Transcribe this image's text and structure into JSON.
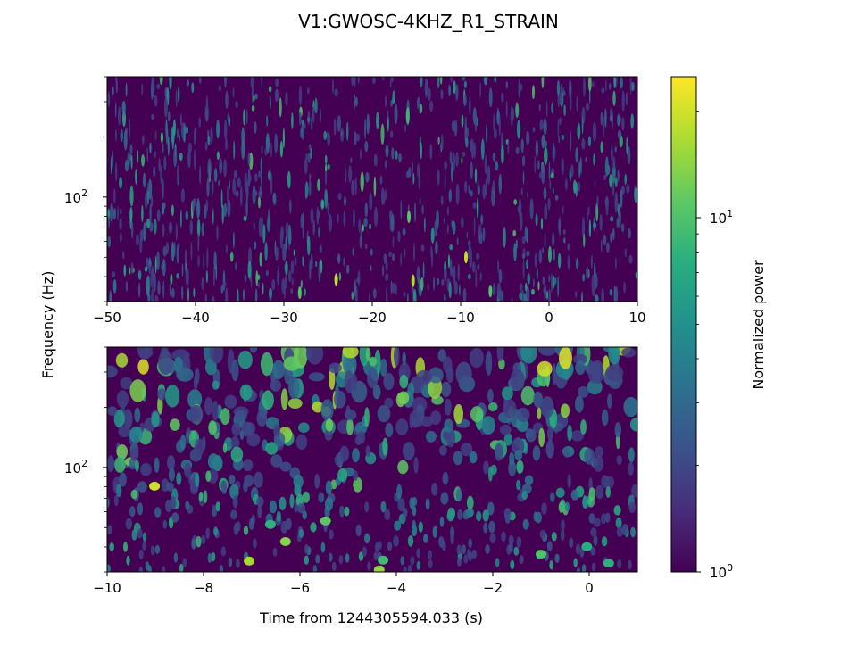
{
  "chart_data": {
    "type": "heatmap",
    "title": "V1:GWOSC-4KHZ_R1_STRAIN",
    "ylabel": "Frequency (Hz)",
    "xlabel": "Time from 1244305594.033 (s)",
    "colormap": "viridis",
    "colorbar": {
      "label": "Normalized power",
      "scale": "log",
      "range": [
        1,
        25
      ],
      "ticks": [
        {
          "value": 1,
          "base": "10",
          "exp": "0"
        },
        {
          "value": 10,
          "base": "10",
          "exp": "1"
        }
      ]
    },
    "panels": [
      {
        "name": "top",
        "xlim": [
          -50,
          10
        ],
        "ylim": [
          30,
          400
        ],
        "yscale": "log",
        "xticks": [
          {
            "value": -50,
            "label": "−50"
          },
          {
            "value": -40,
            "label": "−40"
          },
          {
            "value": -30,
            "label": "−30"
          },
          {
            "value": -20,
            "label": "−20"
          },
          {
            "value": -10,
            "label": "−10"
          },
          {
            "value": 0,
            "label": "0"
          },
          {
            "value": 10,
            "label": "10"
          }
        ],
        "yticks": [
          {
            "value": 100,
            "base": "10",
            "exp": "2"
          }
        ]
      },
      {
        "name": "bottom",
        "xlim": [
          -10,
          1
        ],
        "ylim": [
          30,
          400
        ],
        "yscale": "log",
        "xticks": [
          {
            "value": -10,
            "label": "−10"
          },
          {
            "value": -8,
            "label": "−8"
          },
          {
            "value": -6,
            "label": "−6"
          },
          {
            "value": -4,
            "label": "−4"
          },
          {
            "value": -2,
            "label": "−2"
          },
          {
            "value": 0,
            "label": "0"
          }
        ],
        "yticks": [
          {
            "value": 100,
            "base": "10",
            "exp": "2"
          }
        ]
      }
    ]
  }
}
